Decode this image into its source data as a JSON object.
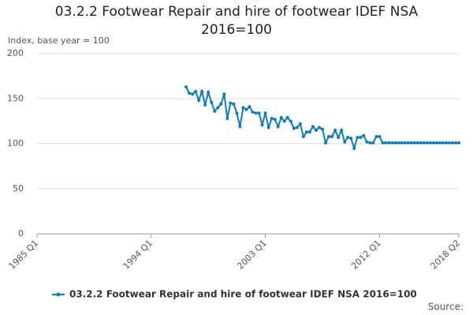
{
  "chart_data": {
    "type": "line",
    "title": "03.2.2 Footwear Repair and hire of footwear IDEF NSA 2016=100",
    "y_label": "Index, base year = 100",
    "source": "Source:",
    "categories": [
      "1985 Q1",
      null,
      null,
      null,
      null,
      null,
      null,
      null,
      null,
      null,
      null,
      null,
      null,
      null,
      null,
      null,
      null,
      null,
      null,
      null,
      null,
      null,
      null,
      null,
      null,
      null,
      null,
      null,
      null,
      null,
      null,
      null,
      null,
      null,
      null,
      null,
      "1994 Q1",
      null,
      null,
      null,
      null,
      null,
      null,
      null,
      null,
      null,
      null,
      null,
      null,
      null,
      null,
      null,
      null,
      null,
      null,
      null,
      null,
      null,
      null,
      null,
      null,
      null,
      null,
      null,
      null,
      null,
      null,
      null,
      null,
      null,
      null,
      null,
      "2003 Q1",
      null,
      null,
      null,
      null,
      null,
      null,
      null,
      null,
      null,
      null,
      null,
      null,
      null,
      null,
      null,
      null,
      null,
      null,
      null,
      null,
      null,
      null,
      null,
      null,
      null,
      null,
      null,
      null,
      null,
      null,
      null,
      null,
      null,
      null,
      null,
      "2012 Q1",
      null,
      null,
      null,
      null,
      null,
      null,
      null,
      null,
      null,
      null,
      null,
      null,
      null,
      null,
      null,
      null,
      null,
      null,
      null,
      null,
      null,
      null,
      null,
      null,
      "2018 Q2"
    ],
    "series": [
      {
        "name": "03.2.2 Footwear Repair and hire of footwear IDEF NSA 2016=100",
        "color": "#0f7bb9",
        "values": [
          null,
          null,
          null,
          null,
          null,
          null,
          null,
          null,
          null,
          null,
          null,
          null,
          null,
          null,
          null,
          null,
          null,
          null,
          null,
          null,
          null,
          null,
          null,
          null,
          null,
          null,
          null,
          null,
          null,
          null,
          null,
          null,
          null,
          null,
          null,
          null,
          null,
          null,
          null,
          null,
          null,
          null,
          null,
          null,
          null,
          null,
          null,
          163,
          156,
          155,
          158,
          148,
          158,
          143,
          157,
          146,
          136,
          140,
          144,
          155,
          128,
          145,
          144,
          134,
          119,
          140,
          138,
          141,
          135,
          134,
          134,
          121,
          134,
          118,
          128,
          127,
          119,
          129,
          125,
          129,
          125,
          117,
          118,
          122,
          108,
          113,
          113,
          119,
          115,
          118,
          116,
          101,
          108,
          108,
          115,
          107,
          115,
          102,
          107,
          106,
          95,
          107,
          107,
          109,
          102,
          101,
          101,
          108,
          108,
          101,
          101,
          101,
          101,
          101,
          101,
          101,
          101,
          101,
          101,
          101,
          101,
          101,
          101,
          101,
          101,
          101,
          101,
          101,
          101,
          101,
          101,
          101,
          101,
          101
        ]
      }
    ],
    "ylim": [
      0,
      200
    ],
    "yticks": [
      0,
      50,
      100,
      150,
      200
    ],
    "grid": true
  }
}
